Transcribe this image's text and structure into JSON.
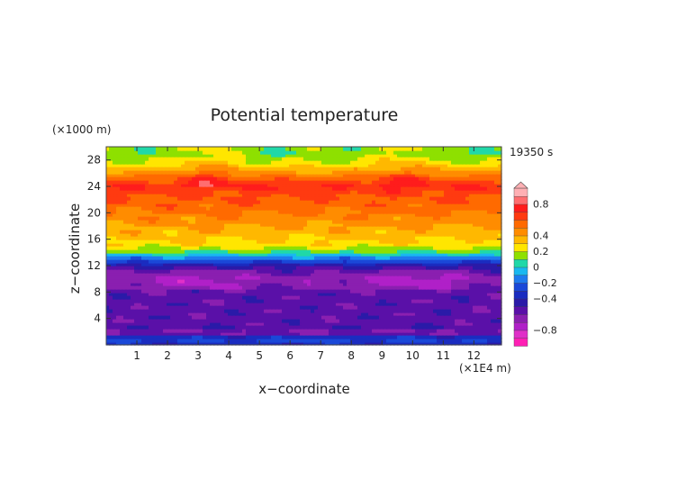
{
  "chart_data": {
    "type": "heatmap",
    "title": "Potential temperature",
    "time_label": "19350 s",
    "xlabel": "x−coordinate",
    "ylabel": "z−coordinate",
    "x_unit": "(×1E4 m)",
    "y_unit": "(×1000 m)",
    "xlim": [
      0,
      12.9
    ],
    "ylim": [
      0,
      30
    ],
    "xticks": [
      1,
      2,
      3,
      4,
      5,
      6,
      7,
      8,
      9,
      10,
      11,
      12
    ],
    "yticks": [
      4,
      8,
      12,
      16,
      20,
      24,
      28
    ],
    "colorbar": {
      "levels": [
        -1.0,
        -0.9,
        -0.8,
        -0.7,
        -0.6,
        -0.5,
        -0.4,
        -0.3,
        -0.2,
        -0.1,
        0,
        0.1,
        0.2,
        0.3,
        0.4,
        0.5,
        0.6,
        0.7,
        0.8,
        0.9,
        1.0
      ],
      "colors": [
        "#ff1fb4",
        "#e030c8",
        "#b020c8",
        "#8a1fb0",
        "#5a10a8",
        "#2a1aa8",
        "#1a2cc0",
        "#1a48d8",
        "#1e7aee",
        "#19b8f0",
        "#20d8a8",
        "#8ee000",
        "#ffe600",
        "#ffb800",
        "#ff8c00",
        "#ff6a00",
        "#ff3a10",
        "#ff1c1c",
        "#ff6e70",
        "#ffb0b4"
      ],
      "tick_values": [
        0.8,
        0.4,
        0.2,
        0,
        -0.2,
        -0.4,
        -0.8
      ],
      "tick_labels": [
        "0.8",
        "0.4",
        "0.2",
        "0",
        "−0.2",
        "−0.4",
        "−0.8"
      ]
    },
    "vertical_profile": {
      "z": [
        0,
        1,
        1.5,
        2,
        2.5,
        3,
        4,
        8,
        9,
        10,
        11,
        12,
        13,
        14,
        15,
        17,
        19,
        21,
        23,
        24,
        25,
        26,
        27,
        28,
        29,
        30
      ],
      "theta": [
        -0.4,
        -0.25,
        -0.45,
        -0.7,
        -0.5,
        -0.55,
        -0.55,
        -0.55,
        -0.62,
        -0.66,
        -0.58,
        -0.48,
        -0.2,
        0.05,
        0.25,
        0.35,
        0.45,
        0.55,
        0.62,
        0.7,
        0.6,
        0.45,
        0.3,
        0.2,
        0.1,
        0.15
      ]
    }
  }
}
